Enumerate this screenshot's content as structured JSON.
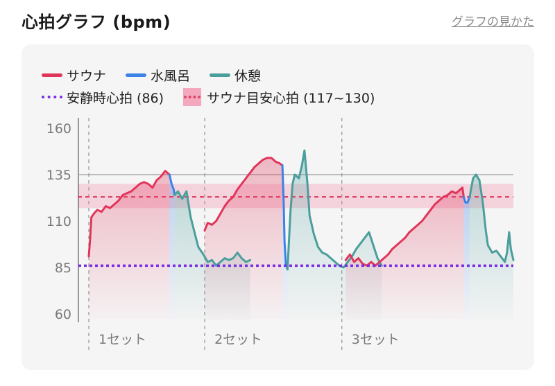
{
  "header": {
    "title": "心拍グラフ (bpm)",
    "help_link": "グラフの見かた"
  },
  "legend": {
    "row1": [
      {
        "label": "サウナ",
        "color": "#e0355a",
        "style": "line"
      },
      {
        "label": "水風呂",
        "color": "#3b82e6",
        "style": "line"
      },
      {
        "label": "休憩",
        "color": "#4a9e9c",
        "style": "line"
      }
    ],
    "row2": [
      {
        "label": "安静時心拍 (86)",
        "color": "#7b2be6",
        "style": "dots"
      },
      {
        "label": "サウナ目安心拍 (117~130)",
        "color": "#e0456a",
        "style": "band"
      }
    ]
  },
  "chart_data": {
    "type": "line",
    "y_ticks": [
      160,
      135,
      110,
      85,
      60
    ],
    "ylim": [
      57,
      162
    ],
    "x_domain": [
      0,
      100
    ],
    "grid": false,
    "resting_hr": 86,
    "target_band": [
      117,
      130
    ],
    "target_line": 123,
    "upper_ref_line": 135,
    "set_labels": [
      {
        "label": "1セット",
        "x": 0
      },
      {
        "label": "2セット",
        "x": 27.3
      },
      {
        "label": "3セット",
        "x": 59.6
      }
    ],
    "series": [
      {
        "name": "サウナ",
        "color": "#e0355a",
        "points": [
          [
            0,
            91
          ],
          [
            0.3,
            100
          ],
          [
            0.6,
            112
          ],
          [
            1.2,
            114
          ],
          [
            2,
            116
          ],
          [
            3,
            115
          ],
          [
            4,
            118
          ],
          [
            5,
            117
          ],
          [
            6,
            119
          ],
          [
            7,
            121
          ],
          [
            8,
            124
          ],
          [
            9,
            125
          ],
          [
            10,
            126
          ],
          [
            11,
            128
          ],
          [
            12,
            130
          ],
          [
            13,
            131
          ],
          [
            14,
            130
          ],
          [
            15,
            128
          ],
          [
            16,
            132
          ],
          [
            17,
            134
          ],
          [
            18,
            137
          ],
          [
            19,
            135
          ]
        ]
      },
      {
        "name": "水風呂",
        "color": "#3b82e6",
        "points": [
          [
            19,
            135
          ],
          [
            19.5,
            130
          ],
          [
            20,
            127
          ],
          [
            20.2,
            124
          ]
        ]
      },
      {
        "name": "休憩",
        "color": "#4a9e9c",
        "points": [
          [
            20.2,
            124
          ],
          [
            21,
            126
          ],
          [
            22,
            122
          ],
          [
            23,
            126
          ],
          [
            24,
            112
          ],
          [
            25,
            103
          ],
          [
            25.8,
            96
          ],
          [
            27,
            92
          ],
          [
            28,
            88
          ],
          [
            29,
            89
          ],
          [
            30,
            86
          ],
          [
            31,
            88
          ],
          [
            32,
            90
          ],
          [
            33,
            89
          ],
          [
            34,
            90
          ],
          [
            35,
            93
          ],
          [
            36,
            90
          ],
          [
            37,
            88
          ],
          [
            38,
            89
          ]
        ]
      },
      {
        "name": "サウナ",
        "color": "#e0355a",
        "points": [
          [
            27.3,
            105
          ],
          [
            28,
            109
          ],
          [
            29,
            108
          ],
          [
            30,
            110
          ],
          [
            31,
            114
          ],
          [
            32,
            118
          ],
          [
            33,
            121
          ],
          [
            34,
            123
          ],
          [
            35,
            127
          ],
          [
            36,
            130
          ],
          [
            37,
            133
          ],
          [
            38,
            136
          ],
          [
            39,
            139
          ],
          [
            40,
            141
          ],
          [
            41,
            143
          ],
          [
            42,
            144
          ],
          [
            43,
            144
          ],
          [
            44,
            142
          ],
          [
            45,
            141
          ],
          [
            45.6,
            140
          ]
        ]
      },
      {
        "name": "水風呂",
        "color": "#3b82e6",
        "points": [
          [
            45.6,
            140
          ],
          [
            45.9,
            120
          ],
          [
            46.1,
            99
          ],
          [
            46.4,
            87
          ],
          [
            46.8,
            84
          ]
        ]
      },
      {
        "name": "休憩",
        "color": "#4a9e9c",
        "points": [
          [
            46.8,
            84
          ],
          [
            47.5,
            115
          ],
          [
            48,
            130
          ],
          [
            48.5,
            135
          ],
          [
            49.5,
            133
          ],
          [
            50.2,
            140
          ],
          [
            50.8,
            148
          ],
          [
            51.5,
            130
          ],
          [
            52,
            113
          ],
          [
            53,
            103
          ],
          [
            54,
            96
          ],
          [
            55,
            93
          ],
          [
            56,
            92
          ],
          [
            57,
            90
          ],
          [
            58,
            88
          ],
          [
            59,
            86
          ],
          [
            60,
            85
          ],
          [
            61,
            88
          ],
          [
            62,
            91
          ],
          [
            63,
            95
          ],
          [
            64,
            98
          ],
          [
            65,
            101
          ],
          [
            66,
            104
          ],
          [
            67,
            97
          ],
          [
            68,
            90
          ],
          [
            69,
            86
          ]
        ]
      },
      {
        "name": "サウナ",
        "color": "#e0355a",
        "points": [
          [
            60.5,
            89
          ],
          [
            61.5,
            92
          ],
          [
            62.5,
            88
          ],
          [
            63.5,
            90
          ],
          [
            64.5,
            87
          ],
          [
            65.5,
            86
          ],
          [
            66.5,
            88
          ],
          [
            67.5,
            86
          ],
          [
            68.5,
            88
          ],
          [
            69.5,
            90
          ],
          [
            70.5,
            92
          ],
          [
            71.5,
            95
          ],
          [
            72.5,
            97
          ],
          [
            73.5,
            99
          ],
          [
            74.5,
            101
          ],
          [
            75.5,
            104
          ],
          [
            76.5,
            106
          ],
          [
            77.5,
            108
          ],
          [
            78.5,
            110
          ],
          [
            79.5,
            113
          ],
          [
            80.5,
            116
          ],
          [
            81.5,
            119
          ],
          [
            82.5,
            121
          ],
          [
            83.5,
            123
          ],
          [
            84.5,
            124
          ],
          [
            85.5,
            126
          ],
          [
            86.5,
            125
          ],
          [
            87.5,
            127
          ],
          [
            88,
            128
          ],
          [
            88.3,
            123
          ]
        ]
      },
      {
        "name": "水風呂",
        "color": "#3b82e6",
        "points": [
          [
            88.3,
            123
          ],
          [
            88.7,
            120
          ],
          [
            89.2,
            120
          ],
          [
            89.7,
            123
          ]
        ]
      },
      {
        "name": "休憩",
        "color": "#4a9e9c",
        "points": [
          [
            89.7,
            123
          ],
          [
            90.5,
            133
          ],
          [
            91.2,
            135
          ],
          [
            92,
            132
          ],
          [
            92.8,
            120
          ],
          [
            93.5,
            105
          ],
          [
            94,
            97
          ],
          [
            95,
            93
          ],
          [
            96,
            94
          ],
          [
            97,
            91
          ],
          [
            98,
            88
          ],
          [
            98.5,
            93
          ],
          [
            99,
            104
          ],
          [
            99.4,
            95
          ],
          [
            100,
            89
          ]
        ]
      }
    ]
  }
}
